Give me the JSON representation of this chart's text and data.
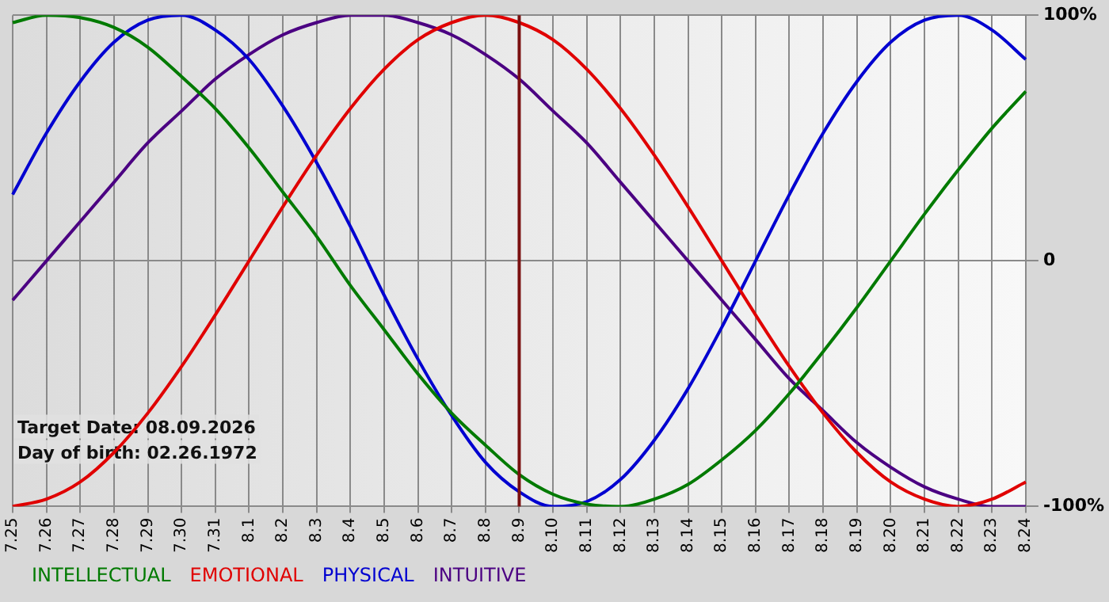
{
  "chart_data": {
    "type": "line",
    "categories": [
      "7.25",
      "7.26",
      "7.27",
      "7.28",
      "7.29",
      "7.30",
      "7.31",
      "8.1",
      "8.2",
      "8.3",
      "8.4",
      "8.5",
      "8.6",
      "8.7",
      "8.8",
      "8.9",
      "8.10",
      "8.11",
      "8.12",
      "8.13",
      "8.14",
      "8.15",
      "8.16",
      "8.17",
      "8.18",
      "8.19",
      "8.20",
      "8.21",
      "8.22",
      "8.23",
      "8.24"
    ],
    "series": [
      {
        "name": "INTELLECTUAL",
        "color": "#007a00",
        "values": [
          97,
          100,
          99,
          95,
          87,
          75,
          62,
          46,
          28,
          10,
          -10,
          -28,
          -46,
          -62,
          -75,
          -87,
          -95,
          -99,
          -100,
          -97,
          -91,
          -81,
          -69,
          -54,
          -37,
          -19,
          0,
          19,
          37,
          54,
          69
        ]
      },
      {
        "name": "EMOTIONAL",
        "color": "#e00000",
        "values": [
          -100,
          -97,
          -90,
          -78,
          -62,
          -43,
          -22,
          0,
          22,
          43,
          62,
          78,
          90,
          97,
          100,
          97,
          90,
          78,
          62,
          43,
          22,
          0,
          -22,
          -43,
          -62,
          -78,
          -90,
          -97,
          -100,
          -97,
          -90
        ]
      },
      {
        "name": "PHYSICAL",
        "color": "#0000d0",
        "values": [
          27,
          52,
          73,
          89,
          98,
          100,
          94,
          82,
          63,
          40,
          14,
          -14,
          -40,
          -63,
          -82,
          -94,
          -100,
          -98,
          -89,
          -73,
          -52,
          -27,
          0,
          27,
          52,
          73,
          89,
          98,
          100,
          94,
          82
        ]
      },
      {
        "name": "INTUITIVE",
        "color": "#4b0082",
        "values": [
          -16,
          0,
          16,
          32,
          48,
          61,
          74,
          84,
          92,
          97,
          100,
          100,
          97,
          92,
          84,
          74,
          61,
          48,
          32,
          16,
          0,
          -16,
          -32,
          -48,
          -61,
          -74,
          -84,
          -92,
          -97,
          -100,
          -100
        ]
      }
    ],
    "ylim": [
      -100,
      100
    ],
    "yticks": [
      {
        "value": -100,
        "label": "-100%"
      },
      0,
      {
        "value": 100,
        "label": "100%"
      }
    ],
    "ref_lines": [
      {
        "axis": "x",
        "value": "8.9",
        "color": "#7a1010"
      }
    ],
    "annotations": [
      "Target Date: 08.09.2026",
      "Day of birth: 02.26.1972"
    ],
    "grid": true,
    "legend": "bottom left",
    "marker": "none",
    "line_style": "solid"
  }
}
